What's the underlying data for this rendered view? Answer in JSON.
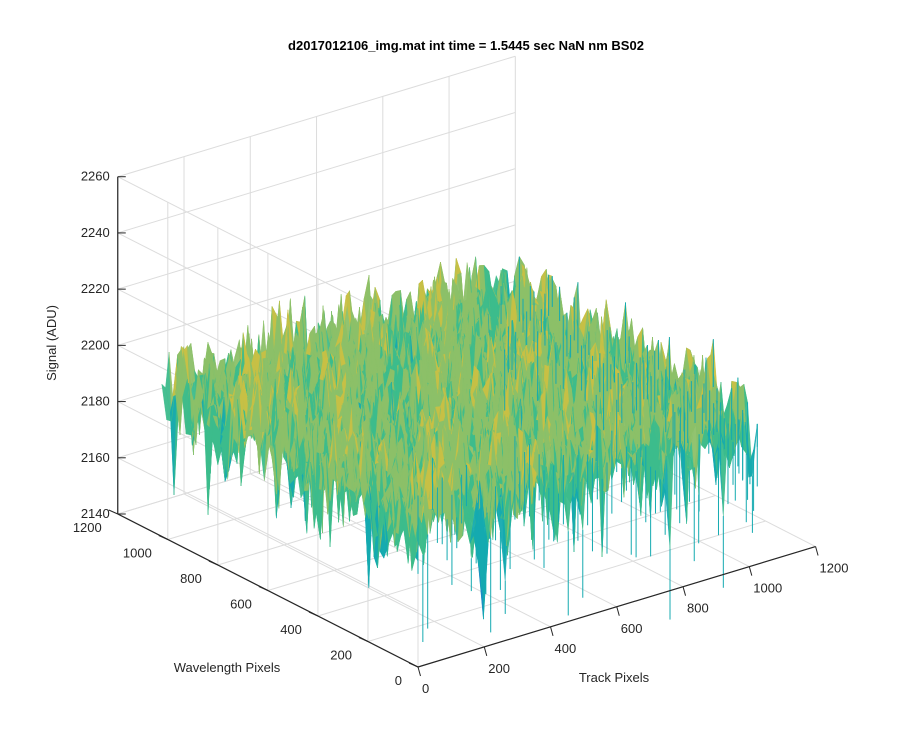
{
  "chart_data": {
    "type": "surface",
    "title": "d2017012106_img.mat int time = 1.5445 sec  NaN nm BS02",
    "xlabel": "Track Pixels",
    "ylabel": "Wavelength Pixels",
    "zlabel": "Signal (ADU)",
    "xlim": [
      0,
      1200
    ],
    "ylim": [
      0,
      1200
    ],
    "zlim": [
      2140,
      2260
    ],
    "x_ticks": [
      "0",
      "200",
      "400",
      "600",
      "800",
      "1000",
      "1200"
    ],
    "y_ticks": [
      "0",
      "200",
      "400",
      "600",
      "800",
      "1000",
      "1200"
    ],
    "z_ticks": [
      "2140",
      "2160",
      "2180",
      "2200",
      "2220",
      "2240",
      "2260"
    ],
    "surface_extent": {
      "x": [
        0,
        1024
      ],
      "y": [
        0,
        1024
      ]
    },
    "signal_mean": 2192,
    "signal_range": [
      2140,
      2250
    ],
    "grid": true,
    "colormap": [
      "#1e88c8",
      "#14aab0",
      "#3cbc8c",
      "#8cc068",
      "#c8c044",
      "#e6c22c"
    ]
  }
}
